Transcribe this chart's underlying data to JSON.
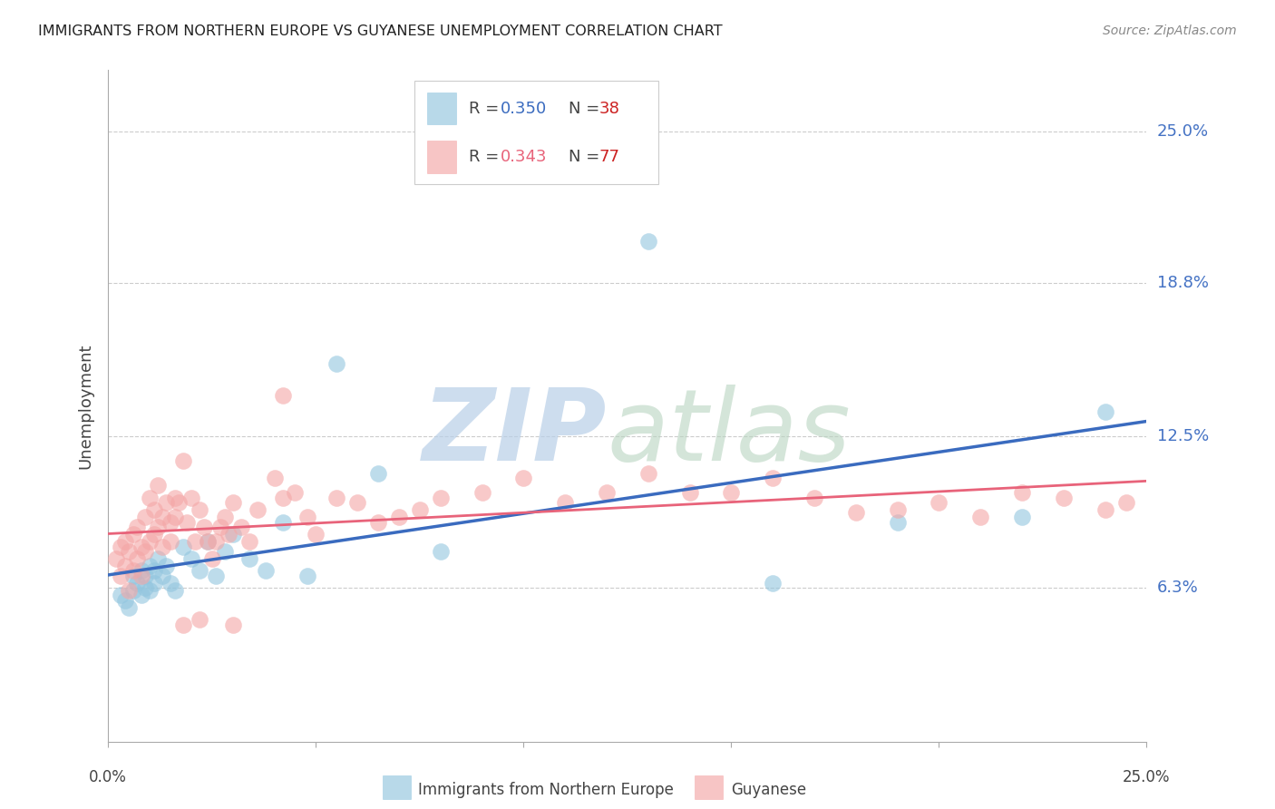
{
  "title": "IMMIGRANTS FROM NORTHERN EUROPE VS GUYANESE UNEMPLOYMENT CORRELATION CHART",
  "source": "Source: ZipAtlas.com",
  "ylabel": "Unemployment",
  "ytick_labels": [
    "25.0%",
    "18.8%",
    "12.5%",
    "6.3%"
  ],
  "ytick_vals": [
    0.25,
    0.188,
    0.125,
    0.063
  ],
  "xmin": 0.0,
  "xmax": 0.25,
  "ymin": 0.0,
  "ymax": 0.275,
  "legend_blue_label": "Immigrants from Northern Europe",
  "legend_pink_label": "Guyanese",
  "blue_color": "#92c5de",
  "pink_color": "#f4a6a6",
  "trendline_blue": "#3a6bbf",
  "trendline_pink": "#e8637a",
  "blue_scatter_x": [
    0.003,
    0.004,
    0.005,
    0.006,
    0.006,
    0.007,
    0.008,
    0.008,
    0.009,
    0.009,
    0.01,
    0.01,
    0.011,
    0.011,
    0.012,
    0.013,
    0.014,
    0.015,
    0.016,
    0.018,
    0.02,
    0.022,
    0.024,
    0.026,
    0.028,
    0.03,
    0.034,
    0.038,
    0.042,
    0.048,
    0.055,
    0.065,
    0.08,
    0.13,
    0.16,
    0.19,
    0.22,
    0.24
  ],
  "blue_scatter_y": [
    0.06,
    0.058,
    0.055,
    0.062,
    0.068,
    0.065,
    0.06,
    0.07,
    0.063,
    0.068,
    0.062,
    0.072,
    0.065,
    0.07,
    0.075,
    0.068,
    0.072,
    0.065,
    0.062,
    0.08,
    0.075,
    0.07,
    0.082,
    0.068,
    0.078,
    0.085,
    0.075,
    0.07,
    0.09,
    0.068,
    0.155,
    0.11,
    0.078,
    0.205,
    0.065,
    0.09,
    0.092,
    0.135
  ],
  "pink_scatter_x": [
    0.002,
    0.003,
    0.003,
    0.004,
    0.004,
    0.005,
    0.005,
    0.006,
    0.006,
    0.007,
    0.007,
    0.008,
    0.008,
    0.009,
    0.009,
    0.01,
    0.01,
    0.011,
    0.011,
    0.012,
    0.012,
    0.013,
    0.013,
    0.014,
    0.015,
    0.015,
    0.016,
    0.016,
    0.017,
    0.018,
    0.019,
    0.02,
    0.021,
    0.022,
    0.023,
    0.024,
    0.025,
    0.026,
    0.027,
    0.028,
    0.029,
    0.03,
    0.032,
    0.034,
    0.036,
    0.04,
    0.042,
    0.045,
    0.048,
    0.05,
    0.055,
    0.06,
    0.065,
    0.07,
    0.075,
    0.08,
    0.09,
    0.1,
    0.11,
    0.12,
    0.13,
    0.14,
    0.15,
    0.16,
    0.17,
    0.18,
    0.19,
    0.2,
    0.21,
    0.22,
    0.23,
    0.24,
    0.245,
    0.018,
    0.022,
    0.03,
    0.042
  ],
  "pink_scatter_y": [
    0.075,
    0.08,
    0.068,
    0.082,
    0.072,
    0.078,
    0.062,
    0.085,
    0.07,
    0.088,
    0.075,
    0.08,
    0.068,
    0.092,
    0.078,
    0.1,
    0.082,
    0.095,
    0.085,
    0.105,
    0.088,
    0.092,
    0.08,
    0.098,
    0.09,
    0.082,
    0.1,
    0.092,
    0.098,
    0.115,
    0.09,
    0.1,
    0.082,
    0.095,
    0.088,
    0.082,
    0.075,
    0.082,
    0.088,
    0.092,
    0.085,
    0.098,
    0.088,
    0.082,
    0.095,
    0.108,
    0.1,
    0.102,
    0.092,
    0.085,
    0.1,
    0.098,
    0.09,
    0.092,
    0.095,
    0.1,
    0.102,
    0.108,
    0.098,
    0.102,
    0.11,
    0.102,
    0.102,
    0.108,
    0.1,
    0.094,
    0.095,
    0.098,
    0.092,
    0.102,
    0.1,
    0.095,
    0.098,
    0.048,
    0.05,
    0.048,
    0.142
  ]
}
